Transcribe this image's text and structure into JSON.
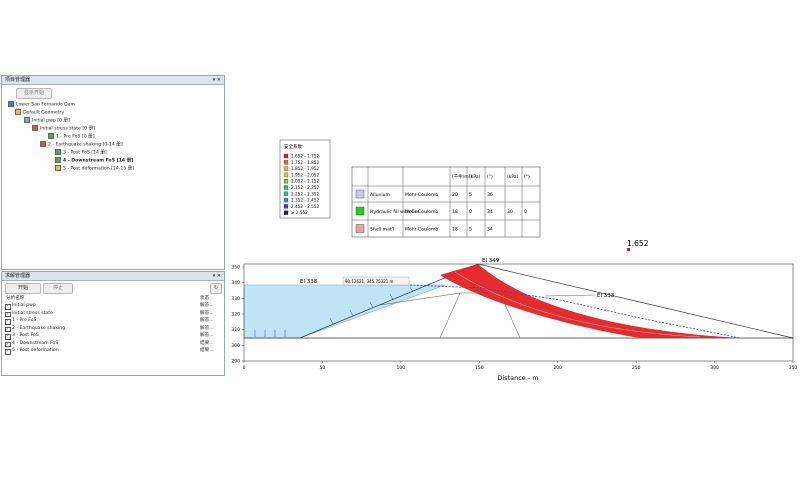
{
  "project_manager": {
    "title": "项目管理器",
    "button": "显示开始",
    "tree": [
      "Lower San Fernando Dam",
      "Default Geometry",
      "Initial pwp [0 册]",
      "Initial stress state [0 册]",
      "1 - Pre FoS [0 册]",
      "2 - Earthquake shaking [0-14 册]",
      "3 - Post FoS [14 册]",
      "4 - Downstream FoS [14 册]",
      "5 - Post deformation [14-15 册]"
    ]
  },
  "solve_manager": {
    "title": "求解管理器",
    "buttons": [
      "开始",
      "停止"
    ],
    "columns": [
      "分析名称",
      "状态"
    ],
    "rows": [
      [
        "Initial pwp",
        "解答..."
      ],
      [
        "Initial stress state",
        "解答..."
      ],
      [
        "1 - Pre FoS",
        "解答..."
      ],
      [
        "2 - Earthquake shaking",
        "解答..."
      ],
      [
        "3 - Post FoS",
        "解答..."
      ],
      [
        "4 - Downstream FoS",
        "结果..."
      ],
      [
        "5 - Post deformation",
        "结果..."
      ]
    ]
  },
  "legend": {
    "title": "安全系数",
    "ranges": [
      "1.652 - 1.752",
      "1.752 - 1.852",
      "1.852 - 1.952",
      "1.952 - 2.052",
      "2.052 - 2.152",
      "2.152 - 2.252",
      "2.252 - 2.352",
      "2.352 - 2.452",
      "2.452 - 2.552",
      "≥ 2.552"
    ],
    "colors": [
      "#e31a1c",
      "#f26a1b",
      "#f7b21c",
      "#c8d62b",
      "#7cc242",
      "#3fb36b",
      "#2eb5b5",
      "#2a8fd6",
      "#2a4fc2",
      "#1a1a9c"
    ]
  },
  "materials": {
    "headers": [
      "(千牛/m³)",
      "(kPa)",
      "(°)",
      "(kPa)",
      "(°)"
    ],
    "rows": [
      {
        "color": "#c8c8f0",
        "cells": [
          "Alluvium",
          "Mohr-Coulomb",
          "20",
          "5",
          "36"
        ]
      },
      {
        "color": "#1ed21e",
        "cells": [
          "Hydraulic fill with Css",
          "Mohr-Coulomb",
          "18",
          "0",
          "34",
          "30",
          "0"
        ]
      },
      {
        "color": "#f0a0a0",
        "cells": [
          "Shell mat'l",
          "Mohr-Coulomb",
          "18",
          "5",
          "34"
        ]
      }
    ]
  },
  "labels": {
    "crest": "El 349",
    "water": "El 338",
    "downstream": "El 333",
    "fos": "1.652",
    "coordinate": "90.12621, 345.75321 m"
  },
  "axis": {
    "xticks": [
      0,
      50,
      100,
      150,
      200,
      250,
      300,
      350
    ],
    "yticks": [
      290,
      300,
      310,
      320,
      330,
      340,
      350
    ],
    "xlabel": "Distance - m"
  }
}
